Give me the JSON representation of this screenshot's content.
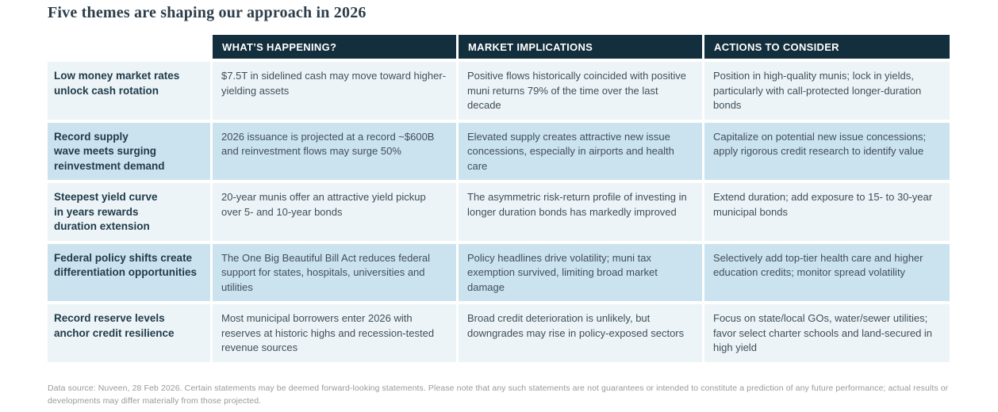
{
  "page": {
    "title": "Five themes are shaping our approach in 2026"
  },
  "colors": {
    "header_bg": "#132f3d",
    "row_light": "#ecf4f7",
    "row_highlight": "#cbe3ee",
    "header_text": "#ffffff",
    "theme_text": "#1f3a49",
    "body_text": "#3f4f5a",
    "footnote_text": "#97999b",
    "title_text": "#2d3e4a"
  },
  "table": {
    "columns": [
      "WHAT’S HAPPENING?",
      "MARKET IMPLICATIONS",
      "ACTIONS TO CONSIDER"
    ],
    "rows": [
      {
        "theme": "Low money market rates\nunlock cash rotation",
        "happening": "$7.5T in sidelined cash may move toward higher-yielding assets",
        "implications": "Positive flows historically coincided with positive muni returns 79% of the time over the last decade",
        "actions": "Position in high-quality munis; lock in yields, particularly with call-protected longer-duration bonds"
      },
      {
        "theme": "Record supply\nwave meets surging\nreinvestment demand",
        "happening": "2026 issuance is projected at a record ~$600B and reinvestment flows may surge 50%",
        "implications": "Elevated supply creates attractive new issue concessions, especially in airports and health care",
        "actions": "Capitalize on potential new issue concessions; apply rigorous credit research to identify value"
      },
      {
        "theme": "Steepest yield curve\nin years rewards\nduration extension",
        "happening": "20-year munis offer an attractive yield pickup over 5- and 10-year bonds",
        "implications": "The asymmetric risk-return profile of investing in longer duration bonds has markedly improved",
        "actions": "Extend duration; add exposure to 15- to 30-year municipal bonds"
      },
      {
        "theme": "Federal policy shifts create\ndifferentiation opportunities",
        "happening": "The One Big Beautiful Bill Act reduces federal support for states, hospitals, universities and utilities",
        "implications": "Policy headlines drive volatility; muni tax exemption survived, limiting broad market damage",
        "actions": "Selectively add top-tier health care and higher education credits; monitor spread volatility"
      },
      {
        "theme": "Record reserve levels\nanchor credit resilience",
        "happening": "Most municipal borrowers enter 2026 with reserves at historic highs and recession-tested revenue sources",
        "implications": "Broad credit deterioration is unlikely, but downgrades may rise in policy-exposed sectors",
        "actions": "Focus on state/local GOs, water/sewer utilities; favor select charter schools and land-secured in high yield"
      }
    ]
  },
  "footer": {
    "note": "Data source: Nuveen, 28 Feb 2026. Certain statements may be deemed forward-looking statements. Please note that any such statements are not guarantees or intended to constitute a prediction of any future performance; actual results or developments may differ materially from those projected."
  }
}
